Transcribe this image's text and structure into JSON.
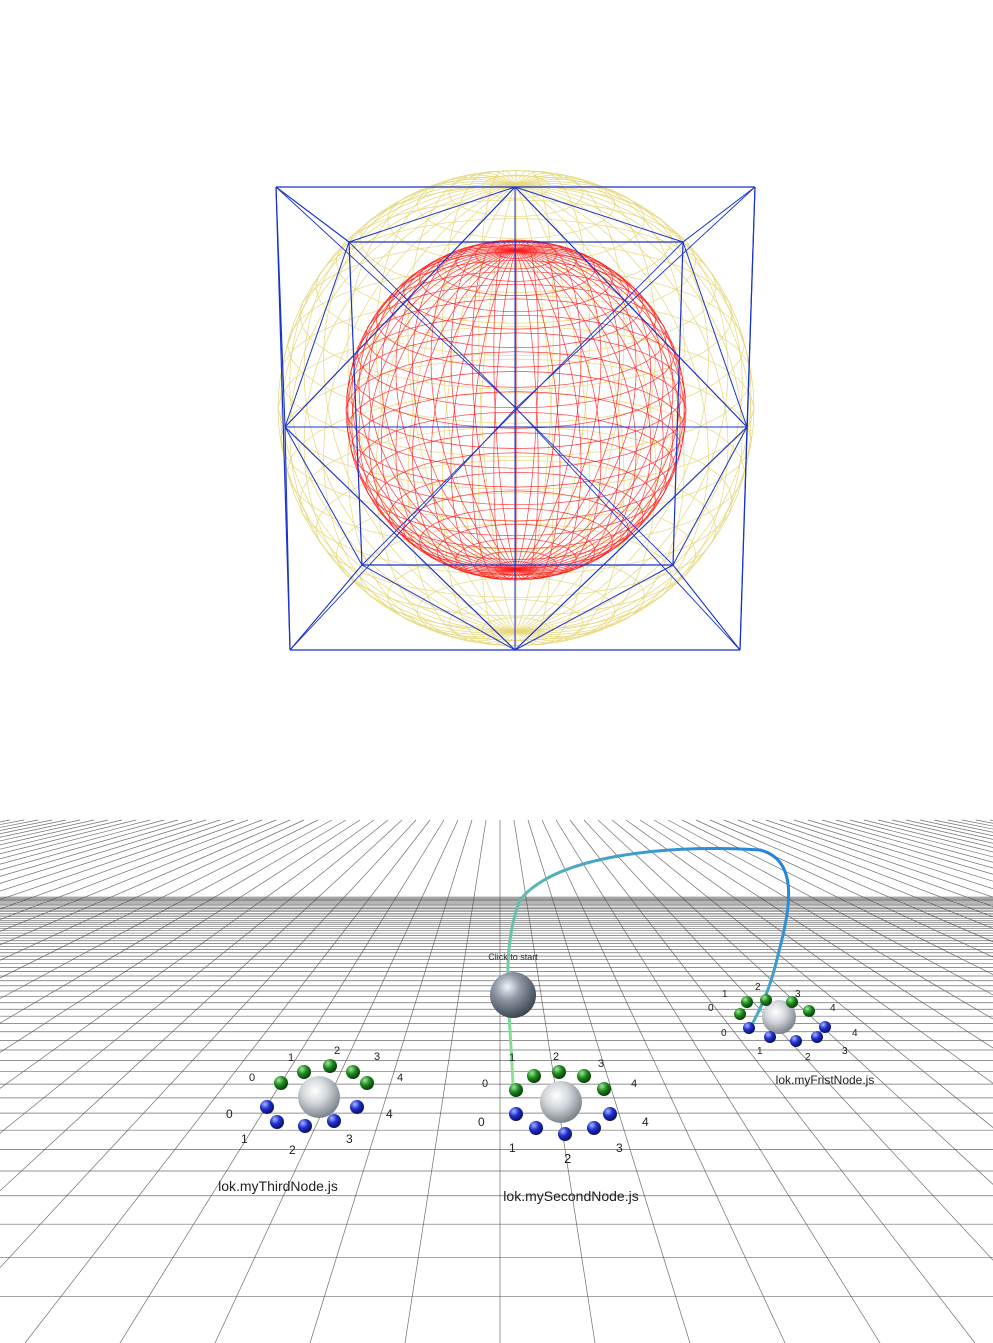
{
  "wireframe": {
    "colors": {
      "cube": "#1a33c8",
      "outer_sphere": "#e6d77a",
      "inner_sphere": "#ff1a1a"
    }
  },
  "scene": {
    "grid_color": "#555555",
    "port_colors": {
      "input": "#1f8a1f",
      "output": "#1f2fd0"
    },
    "start": {
      "label": "Click to start"
    },
    "nodes": [
      {
        "label": "lok.myFristNode.js",
        "top_ports": [
          "0",
          "1",
          "2",
          "3",
          "4"
        ],
        "bottom_ports": [
          "0",
          "1",
          "2",
          "3",
          "4"
        ]
      },
      {
        "label": "lok.mySecondNode.js",
        "top_ports": [
          "0",
          "1",
          "2",
          "3",
          "4"
        ],
        "bottom_ports": [
          "0",
          "1",
          "2",
          "3",
          "4"
        ]
      },
      {
        "label": "lok.myThirdNode.js",
        "top_ports": [
          "0",
          "1",
          "2",
          "3",
          "4"
        ],
        "bottom_ports": [
          "0",
          "1",
          "2",
          "3",
          "4"
        ]
      }
    ],
    "connection_colors": {
      "from": "#8ee88e",
      "to": "#1e7fe0"
    }
  }
}
